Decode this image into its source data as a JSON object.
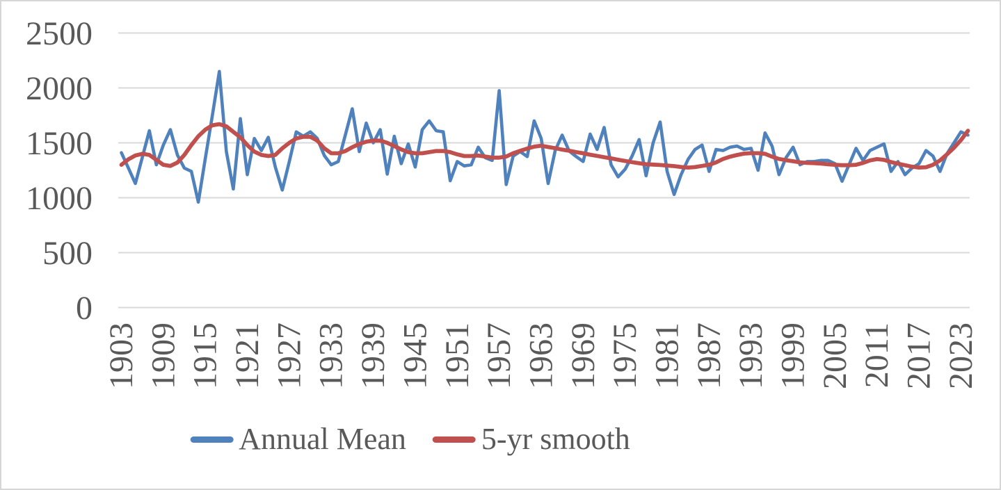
{
  "chart_data": {
    "type": "line",
    "title": "",
    "xlabel": "",
    "ylabel": "",
    "x": [
      1903,
      1904,
      1905,
      1906,
      1907,
      1908,
      1909,
      1910,
      1911,
      1912,
      1913,
      1914,
      1915,
      1916,
      1917,
      1918,
      1919,
      1920,
      1921,
      1922,
      1923,
      1924,
      1925,
      1926,
      1927,
      1928,
      1929,
      1930,
      1931,
      1932,
      1933,
      1934,
      1935,
      1936,
      1937,
      1938,
      1939,
      1940,
      1941,
      1942,
      1943,
      1944,
      1945,
      1946,
      1947,
      1948,
      1949,
      1950,
      1951,
      1952,
      1953,
      1954,
      1955,
      1956,
      1957,
      1958,
      1959,
      1960,
      1961,
      1962,
      1963,
      1964,
      1965,
      1966,
      1967,
      1968,
      1969,
      1970,
      1971,
      1972,
      1973,
      1974,
      1975,
      1976,
      1977,
      1978,
      1979,
      1980,
      1981,
      1982,
      1983,
      1984,
      1985,
      1986,
      1987,
      1988,
      1989,
      1990,
      1991,
      1992,
      1993,
      1994,
      1995,
      1996,
      1997,
      1998,
      1999,
      2000,
      2001,
      2002,
      2003,
      2004,
      2005,
      2006,
      2007,
      2008,
      2009,
      2010,
      2011,
      2012,
      2013,
      2014,
      2015,
      2016,
      2017,
      2018,
      2019,
      2020,
      2021,
      2022,
      2023,
      2024
    ],
    "series": [
      {
        "name": "Annual Mean",
        "color": "#4F81BD",
        "stroke_width": 4.6,
        "values": [
          1410,
          1270,
          1130,
          1370,
          1610,
          1300,
          1480,
          1620,
          1390,
          1270,
          1240,
          960,
          1360,
          1750,
          2150,
          1420,
          1080,
          1720,
          1210,
          1540,
          1430,
          1550,
          1280,
          1070,
          1330,
          1600,
          1560,
          1600,
          1540,
          1385,
          1300,
          1330,
          1570,
          1810,
          1420,
          1680,
          1500,
          1620,
          1215,
          1560,
          1310,
          1490,
          1280,
          1620,
          1700,
          1610,
          1600,
          1155,
          1330,
          1290,
          1300,
          1460,
          1365,
          1340,
          1975,
          1120,
          1380,
          1420,
          1375,
          1700,
          1540,
          1130,
          1430,
          1570,
          1425,
          1375,
          1330,
          1580,
          1440,
          1640,
          1300,
          1190,
          1260,
          1380,
          1530,
          1200,
          1500,
          1690,
          1240,
          1030,
          1210,
          1350,
          1440,
          1480,
          1240,
          1440,
          1430,
          1460,
          1470,
          1440,
          1450,
          1250,
          1590,
          1470,
          1210,
          1365,
          1460,
          1300,
          1330,
          1330,
          1340,
          1340,
          1310,
          1150,
          1300,
          1450,
          1340,
          1430,
          1460,
          1490,
          1240,
          1330,
          1210,
          1270,
          1310,
          1430,
          1380,
          1240,
          1400,
          1500,
          1600,
          1570
        ]
      },
      {
        "name": "5-yr smooth",
        "color": "#C0504D",
        "stroke_width": 5.8,
        "values": [
          1300,
          1350,
          1385,
          1400,
          1390,
          1345,
          1300,
          1290,
          1320,
          1390,
          1480,
          1560,
          1620,
          1660,
          1670,
          1650,
          1600,
          1550,
          1480,
          1420,
          1390,
          1380,
          1390,
          1450,
          1500,
          1540,
          1555,
          1555,
          1520,
          1450,
          1405,
          1405,
          1425,
          1460,
          1490,
          1510,
          1520,
          1520,
          1500,
          1470,
          1440,
          1415,
          1405,
          1405,
          1415,
          1425,
          1425,
          1415,
          1395,
          1380,
          1380,
          1385,
          1375,
          1365,
          1365,
          1375,
          1405,
          1427,
          1448,
          1465,
          1474,
          1462,
          1451,
          1438,
          1428,
          1415,
          1405,
          1392,
          1381,
          1369,
          1358,
          1346,
          1335,
          1324,
          1314,
          1305,
          1302,
          1298,
          1293,
          1288,
          1280,
          1275,
          1279,
          1290,
          1300,
          1322,
          1353,
          1374,
          1389,
          1402,
          1406,
          1406,
          1400,
          1374,
          1353,
          1342,
          1332,
          1322,
          1317,
          1315,
          1311,
          1305,
          1300,
          1296,
          1296,
          1300,
          1317,
          1340,
          1352,
          1345,
          1325,
          1311,
          1296,
          1283,
          1275,
          1278,
          1300,
          1340,
          1395,
          1455,
          1525,
          1610
        ]
      }
    ],
    "ylim": [
      0,
      2500
    ],
    "yticks": [
      0,
      500,
      1000,
      1500,
      2000,
      2500
    ],
    "xticks": [
      1903,
      1909,
      1915,
      1921,
      1927,
      1933,
      1939,
      1945,
      1951,
      1957,
      1963,
      1969,
      1975,
      1981,
      1987,
      1993,
      1999,
      2005,
      2011,
      2017,
      2023
    ],
    "grid": "horizontal",
    "legend_position": "bottom",
    "axis_text_color": "#595959",
    "grid_color": "#D9D9D9",
    "background_color": "#FFFFFF",
    "frame_border_color": "#D6D6D6"
  }
}
